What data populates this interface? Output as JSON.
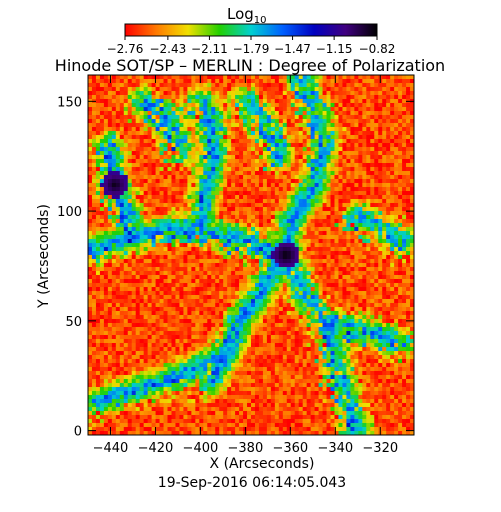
{
  "colorbar": {
    "label": "Log",
    "label_sub": "10",
    "ticks": [
      "-2.76",
      "-2.43",
      "-2.11",
      "-1.79",
      "-1.47",
      "-1.15",
      "-0.82"
    ],
    "colors": [
      "#ff0000",
      "#ff7a00",
      "#f0e000",
      "#22d000",
      "#00d0d0",
      "#0060ff",
      "#0000c0",
      "#400080",
      "#000000"
    ]
  },
  "chart_data": {
    "type": "heatmap",
    "title": "Hinode SOT/SP – MERLIN : Degree of Polarization",
    "xlabel": "X (Arcseconds)",
    "ylabel": "Y (Arcseconds)",
    "xlim": [
      -450,
      -305
    ],
    "ylim": [
      -2,
      162
    ],
    "x_ticks": [
      "−440",
      "−420",
      "−400",
      "−380",
      "−360",
      "−340",
      "−320"
    ],
    "x_tick_values": [
      -440,
      -420,
      -400,
      -380,
      -360,
      -340,
      -320
    ],
    "y_ticks": [
      "0",
      "50",
      "100",
      "150"
    ],
    "y_tick_values": [
      0,
      50,
      100,
      150
    ],
    "value_range": [
      -2.76,
      -0.82
    ],
    "value_units": "Log10 degree of polarization",
    "strong_regions": [
      {
        "x": -362,
        "y": 80,
        "value": -0.82
      },
      {
        "x": -438,
        "y": 112,
        "value": -0.85
      }
    ]
  },
  "footer": {
    "timestamp": "19-Sep-2016 06:14:05.043"
  }
}
